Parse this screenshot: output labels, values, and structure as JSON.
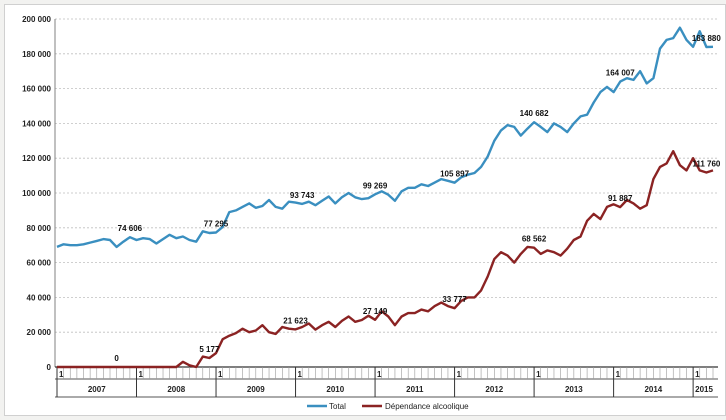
{
  "chart_data": {
    "type": "line",
    "title": "",
    "xlabel": "",
    "ylabel": "",
    "ylim": [
      0,
      200000
    ],
    "y_ticks": [
      "0",
      "20 000",
      "40 000",
      "60 000",
      "80 000",
      "100 000",
      "120 000",
      "140 000",
      "160 000",
      "180 000",
      "200 000"
    ],
    "years": [
      "2007",
      "2008",
      "2009",
      "2010",
      "2011",
      "2012",
      "2013",
      "2014",
      "2015"
    ],
    "year_start_marker": "1",
    "grid": true,
    "legend_position": "bottom",
    "series": [
      {
        "name": "Total",
        "color": "#3a8fc0",
        "values": [
          69000,
          70500,
          70000,
          70000,
          70500,
          71500,
          72500,
          73500,
          73000,
          69000,
          72000,
          74606,
          73000,
          74000,
          73500,
          71000,
          73500,
          76000,
          74000,
          75000,
          73000,
          72000,
          78000,
          77000,
          77295,
          80500,
          89000,
          90000,
          92000,
          94000,
          91500,
          92500,
          96000,
          92000,
          91000,
          95000,
          94500,
          93743,
          95000,
          93000,
          95500,
          98000,
          94000,
          97500,
          100000,
          97500,
          96500,
          97000,
          99269,
          101000,
          99000,
          95500,
          101000,
          103000,
          103000,
          105000,
          104000,
          106000,
          108000,
          107000,
          105897,
          109000,
          110500,
          111500,
          115000,
          121000,
          130000,
          136000,
          139000,
          138000,
          133000,
          137000,
          140682,
          138000,
          135000,
          140000,
          138000,
          135000,
          140000,
          144000,
          145000,
          152000,
          158000,
          161000,
          158000,
          164007,
          166000,
          165000,
          170000,
          163000,
          166000,
          183000,
          188000,
          189000,
          195000,
          188000,
          184000,
          193000,
          183880,
          184000
        ],
        "labels": [
          {
            "i": 11,
            "text": "74 606"
          },
          {
            "i": 24,
            "text": "77 295"
          },
          {
            "i": 37,
            "text": "93 743"
          },
          {
            "i": 48,
            "text": "99 269"
          },
          {
            "i": 60,
            "text": "105 897"
          },
          {
            "i": 72,
            "text": "140 682"
          },
          {
            "i": 85,
            "text": "164 007"
          },
          {
            "i": 98,
            "text": "183 880"
          }
        ]
      },
      {
        "name": "Dépendance alcoolique",
        "color": "#8b2323",
        "values": [
          0,
          0,
          0,
          0,
          0,
          0,
          0,
          0,
          0,
          0,
          0,
          0,
          0,
          0,
          0,
          0,
          0,
          0,
          0,
          3000,
          1000,
          0,
          6000,
          5177,
          8000,
          16000,
          18000,
          19500,
          22000,
          20000,
          21000,
          24000,
          20000,
          19000,
          23000,
          22000,
          21623,
          23000,
          25000,
          21500,
          24000,
          26000,
          23000,
          26500,
          29000,
          26000,
          27000,
          29500,
          27149,
          32000,
          29000,
          24000,
          29000,
          31000,
          31000,
          33000,
          32000,
          35000,
          37000,
          35000,
          33777,
          38000,
          40000,
          40000,
          44000,
          52000,
          62000,
          66000,
          64000,
          60000,
          65000,
          69000,
          68562,
          65000,
          67000,
          66000,
          64000,
          68000,
          73000,
          75000,
          84000,
          88000,
          85000,
          92000,
          93500,
          91887,
          96000,
          94000,
          91000,
          93000,
          108000,
          115000,
          117000,
          124000,
          116000,
          113000,
          120000,
          113000,
          111760,
          113000
        ],
        "labels": [
          {
            "i": 0,
            "text": "0",
            "anchor_i": 9
          },
          {
            "i": 23,
            "text": "5 177"
          },
          {
            "i": 36,
            "text": "21 623"
          },
          {
            "i": 48,
            "text": "27 149"
          },
          {
            "i": 60,
            "text": "33 777"
          },
          {
            "i": 72,
            "text": "68 562"
          },
          {
            "i": 85,
            "text": "91 887"
          },
          {
            "i": 98,
            "text": "111 760"
          }
        ]
      }
    ]
  },
  "colors": {
    "total": "#3a8fc0",
    "alcohol": "#8b2323",
    "grid": "#bfbfbf",
    "axis": "#808080"
  }
}
